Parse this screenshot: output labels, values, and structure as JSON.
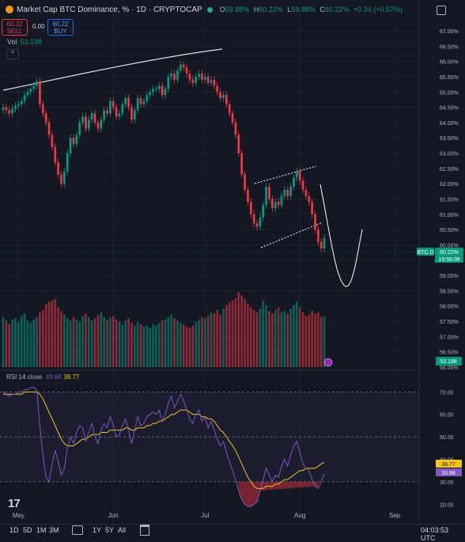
{
  "header": {
    "title": "Market Cap BTC Dominance, % · 1D · CRYPTOCAP",
    "ohlc": [
      {
        "k": "O",
        "v": "59.88%"
      },
      {
        "k": "H",
        "v": "60.22%"
      },
      {
        "k": "L",
        "v": "59.88%"
      },
      {
        "k": "C",
        "v": "60.22%"
      }
    ],
    "change": "+0.34 (+0.57%)"
  },
  "trade": {
    "sell_price": "60.22",
    "sell_label": "SELL",
    "spread": "0.00",
    "buy_price": "60.22",
    "buy_label": "BUY"
  },
  "volume_label": {
    "name": "Vol",
    "value": "53.198"
  },
  "rsi_label": {
    "name": "RSI 14 close",
    "rsi": "33.68",
    "ma": "38.77"
  },
  "price_badge": {
    "symbol": "BTC.D",
    "value": "60.22%",
    "countdown": "19:56:08"
  },
  "volume_badge": "53.198",
  "rsi_badges": {
    "ma": "38.77",
    "rsi": "33.68"
  },
  "bottom_bar": {
    "ranges": [
      "1D",
      "5D",
      "1M",
      "3M",
      "1Y",
      "5Y",
      "All"
    ],
    "clock": "04:03:53 UTC"
  },
  "colors": {
    "up": "#089981",
    "down": "#f23645",
    "rsi": "#7e57c2",
    "rsi_ma": "#f5c518",
    "background": "#131722"
  },
  "chart_data": [
    {
      "type": "candlestick",
      "title": "Market Cap BTC Dominance, % · 1D · CRYPTOCAP",
      "y_unit": "%",
      "ylim": [
        56.0,
        67.4
      ],
      "y_ticks": [
        67.0,
        66.5,
        66.0,
        65.5,
        65.0,
        64.5,
        64.0,
        63.5,
        63.0,
        62.5,
        62.0,
        61.5,
        61.0,
        60.5,
        60.0,
        59.5,
        59.0,
        58.5,
        58.0,
        57.5,
        57.0,
        56.5,
        56.0
      ],
      "y_tick_labels": [
        "67.00%",
        "66.50%",
        "66.00%",
        "65.50%",
        "65.00%",
        "64.50%",
        "64.00%",
        "63.50%",
        "63.00%",
        "62.50%",
        "62.00%",
        "61.50%",
        "61.00%",
        "60.50%",
        "60.00%",
        "59.50%",
        "59.00%",
        "58.50%",
        "58.00%",
        "57.50%",
        "57.00%",
        "56.50%",
        "56.00%"
      ],
      "x_ticks": [
        {
          "label": "May",
          "day": 5
        },
        {
          "label": "Jun",
          "day": 36
        },
        {
          "label": "Jul",
          "day": 66
        },
        {
          "label": "Aug",
          "day": 97
        },
        {
          "label": "Sep",
          "day": 128
        }
      ],
      "x_range_days": [
        0,
        136
      ],
      "close": [
        64.5,
        64.4,
        64.3,
        64.45,
        64.55,
        64.6,
        64.7,
        64.9,
        65.0,
        65.1,
        65.2,
        65.35,
        64.6,
        64.3,
        64.0,
        63.6,
        63.2,
        62.7,
        62.3,
        62.0,
        62.4,
        63.0,
        63.5,
        63.3,
        63.6,
        64.0,
        64.2,
        63.8,
        64.1,
        64.3,
        64.0,
        63.8,
        64.1,
        64.4,
        64.3,
        64.7,
        64.5,
        64.2,
        64.3,
        64.6,
        64.8,
        64.5,
        64.1,
        64.4,
        64.8,
        64.6,
        64.7,
        64.9,
        65.0,
        65.1,
        65.1,
        65.2,
        64.9,
        65.1,
        65.5,
        65.6,
        65.4,
        65.7,
        65.9,
        65.8,
        65.6,
        65.4,
        65.3,
        65.5,
        65.6,
        65.4,
        65.5,
        65.3,
        65.4,
        65.2,
        65.0,
        64.8,
        64.9,
        64.6,
        64.3,
        64.0,
        63.6,
        63.0,
        62.3,
        61.8,
        61.4,
        61.0,
        60.7,
        60.6,
        60.9,
        61.3,
        61.9,
        61.5,
        61.2,
        61.4,
        61.3,
        61.6,
        61.8,
        61.6,
        61.9,
        62.2,
        62.4,
        62.1,
        61.8,
        61.6,
        61.4,
        61.0,
        60.5,
        60.1,
        59.88,
        60.22
      ],
      "volume": [
        4.2,
        3.9,
        3.6,
        4.0,
        4.1,
        3.8,
        4.3,
        4.5,
        3.9,
        3.7,
        4.0,
        4.2,
        4.6,
        4.8,
        5.3,
        5.5,
        5.6,
        5.7,
        5.0,
        4.7,
        4.4,
        4.1,
        3.9,
        4.2,
        4.0,
        3.8,
        4.3,
        4.5,
        4.2,
        3.9,
        4.1,
        4.4,
        4.6,
        4.2,
        4.0,
        4.2,
        4.3,
        4.0,
        3.8,
        3.6,
        3.9,
        4.1,
        3.7,
        3.5,
        3.8,
        3.6,
        3.4,
        3.5,
        3.3,
        3.6,
        3.5,
        3.7,
        3.9,
        4.0,
        4.2,
        4.4,
        4.1,
        3.9,
        3.7,
        3.6,
        3.4,
        3.3,
        3.5,
        3.8,
        4.0,
        4.2,
        4.1,
        4.3,
        4.6,
        4.5,
        4.8,
        4.4,
        4.9,
        5.2,
        5.4,
        5.6,
        5.8,
        6.3,
        6.0,
        5.7,
        5.3,
        5.0,
        4.8,
        4.6,
        4.9,
        5.6,
        5.2,
        4.7,
        4.5,
        4.8,
        5.0,
        4.6,
        4.7,
        4.5,
        4.9,
        5.2,
        5.5,
        5.0,
        4.6,
        4.3,
        4.4,
        4.7,
        4.5,
        4.6,
        4.2,
        4.3
      ],
      "volume_current": 53.198
    },
    {
      "type": "line",
      "title": "RSI 14 close",
      "ylim": [
        12,
        74
      ],
      "y_ticks": [
        70,
        60,
        50,
        40,
        30,
        20
      ],
      "y_tick_labels": [
        "70.00",
        "60.00",
        "50.00",
        "40.00",
        "30.00",
        "20.00"
      ],
      "levels": [
        70,
        50,
        30
      ],
      "series": [
        {
          "name": "RSI",
          "values": [
            70,
            69,
            68,
            69,
            69,
            70,
            70,
            71,
            71,
            72,
            72,
            71,
            55,
            42,
            32,
            30,
            38,
            44,
            39,
            33,
            36,
            45,
            50,
            47,
            52,
            55,
            54,
            48,
            52,
            56,
            50,
            47,
            53,
            56,
            54,
            59,
            55,
            50,
            51,
            55,
            58,
            53,
            47,
            53,
            59,
            55,
            56,
            59,
            60,
            61,
            60,
            62,
            57,
            60,
            65,
            68,
            63,
            66,
            69,
            66,
            62,
            58,
            56,
            60,
            62,
            57,
            59,
            54,
            57,
            53,
            49,
            46,
            48,
            43,
            39,
            35,
            31,
            26,
            22,
            20,
            19,
            19,
            20,
            21,
            26,
            31,
            36,
            33,
            30,
            33,
            32,
            37,
            40,
            37,
            42,
            46,
            48,
            43,
            38,
            36,
            35,
            31,
            28,
            27,
            30,
            33.68
          ]
        },
        {
          "name": "RSI-based MA",
          "values": [
            69,
            69,
            69,
            69,
            69,
            69,
            69,
            70,
            70,
            70,
            70,
            70,
            69,
            67,
            64,
            61,
            58,
            55,
            52,
            49,
            47,
            46,
            46,
            46,
            47,
            48,
            49,
            49,
            50,
            51,
            51,
            51,
            52,
            52,
            52,
            53,
            53,
            53,
            53,
            53,
            54,
            54,
            53,
            53,
            54,
            54,
            54,
            55,
            55,
            56,
            56,
            57,
            57,
            58,
            59,
            60,
            60,
            61,
            62,
            62,
            62,
            61,
            60,
            60,
            60,
            59,
            59,
            58,
            58,
            57,
            55,
            53,
            52,
            50,
            48,
            46,
            44,
            41,
            38,
            35,
            32,
            30,
            28,
            27,
            27,
            27,
            28,
            28,
            28,
            29,
            29,
            30,
            31,
            31,
            32,
            33,
            34,
            35,
            35,
            36,
            36,
            36,
            36,
            37,
            38,
            38.77
          ]
        }
      ]
    }
  ]
}
